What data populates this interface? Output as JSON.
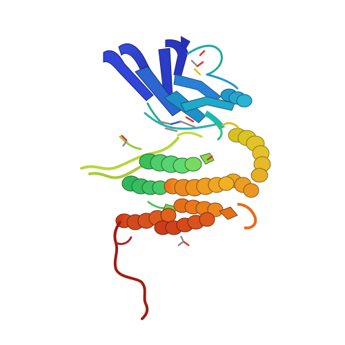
{
  "image": {
    "subject": "protein-kinase-ribbon-structure",
    "background_color": "#ffffff",
    "palette": {
      "n_lobe_blue": "#2f3fd0",
      "n_lobe_cyan": "#1fa8c8",
      "hinge_green": "#4ccf6a",
      "linker_lime": "#b6d63a",
      "c_lobe_yellow": "#e0c428",
      "c_lobe_orange": "#e98a1c",
      "c_lobe_red": "#d4461c",
      "c_term_darkred": "#a01c12",
      "ligand_gray": "#8a8a8a",
      "ligand_red": "#e0302a",
      "ligand_blue": "#3050e0"
    }
  }
}
